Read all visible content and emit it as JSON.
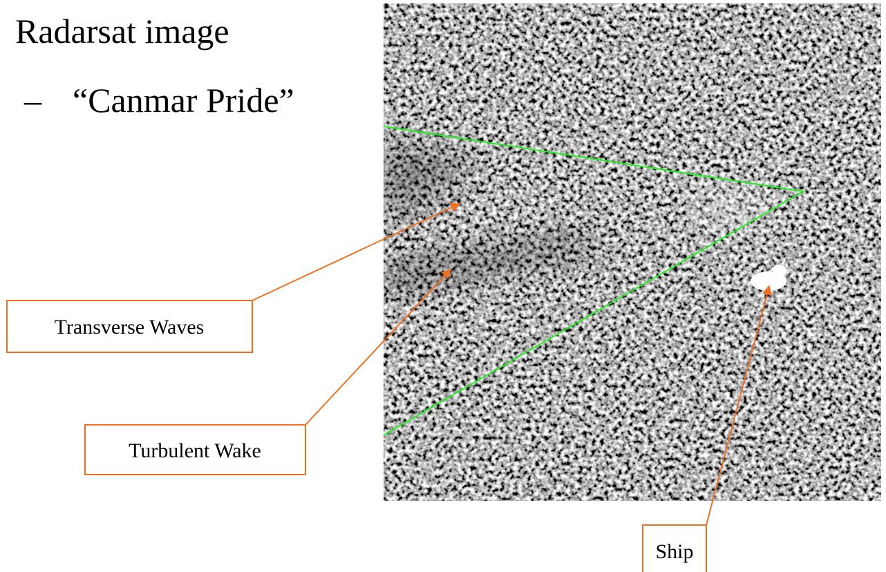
{
  "heading": "Radarsat image",
  "bullet": {
    "marker": "–",
    "text": "“Canmar Pride”"
  },
  "callouts": [
    "Transverse Waves",
    "Turbulent Wake",
    "Ship"
  ]
}
